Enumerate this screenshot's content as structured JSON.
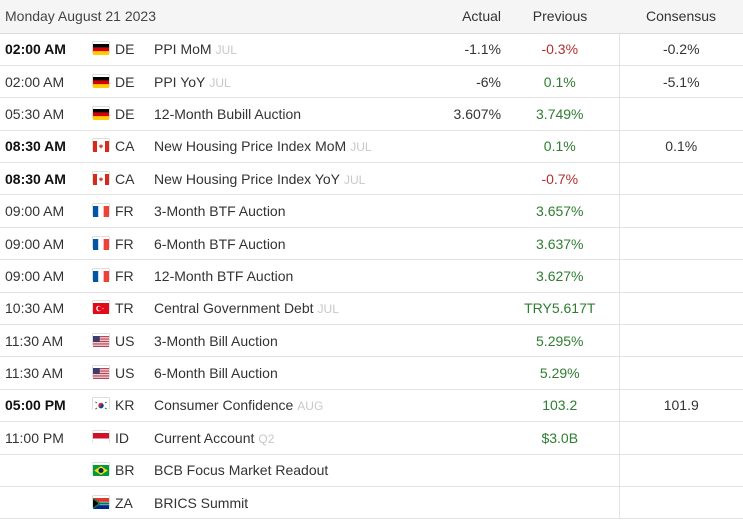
{
  "header": {
    "date": "Monday August 21 2023",
    "actual": "Actual",
    "previous": "Previous",
    "consensus": "Consensus"
  },
  "rows": [
    {
      "time": "02:00 AM",
      "bold": true,
      "flag": "de",
      "country": "DE",
      "event": "PPI MoM",
      "period": "JUL",
      "actual": "-1.1%",
      "previous": "-0.3%",
      "previous_color": "neg",
      "consensus": "-0.2%"
    },
    {
      "time": "02:00 AM",
      "bold": false,
      "flag": "de",
      "country": "DE",
      "event": "PPI YoY",
      "period": "JUL",
      "actual": "-6%",
      "previous": "0.1%",
      "previous_color": "pos",
      "consensus": "-5.1%"
    },
    {
      "time": "05:30 AM",
      "bold": false,
      "flag": "de",
      "country": "DE",
      "event": "12-Month Bubill Auction",
      "period": "",
      "actual": "3.607%",
      "previous": "3.749%",
      "previous_color": "pos",
      "consensus": ""
    },
    {
      "time": "08:30 AM",
      "bold": true,
      "flag": "ca",
      "country": "CA",
      "event": "New Housing Price Index MoM",
      "period": "JUL",
      "actual": "",
      "previous": "0.1%",
      "previous_color": "pos",
      "consensus": "0.1%"
    },
    {
      "time": "08:30 AM",
      "bold": true,
      "flag": "ca",
      "country": "CA",
      "event": "New Housing Price Index YoY",
      "period": "JUL",
      "actual": "",
      "previous": "-0.7%",
      "previous_color": "neg",
      "consensus": ""
    },
    {
      "time": "09:00 AM",
      "bold": false,
      "flag": "fr",
      "country": "FR",
      "event": "3-Month BTF Auction",
      "period": "",
      "actual": "",
      "previous": "3.657%",
      "previous_color": "pos",
      "consensus": ""
    },
    {
      "time": "09:00 AM",
      "bold": false,
      "flag": "fr",
      "country": "FR",
      "event": "6-Month BTF Auction",
      "period": "",
      "actual": "",
      "previous": "3.637%",
      "previous_color": "pos",
      "consensus": ""
    },
    {
      "time": "09:00 AM",
      "bold": false,
      "flag": "fr",
      "country": "FR",
      "event": "12-Month BTF Auction",
      "period": "",
      "actual": "",
      "previous": "3.627%",
      "previous_color": "pos",
      "consensus": ""
    },
    {
      "time": "10:30 AM",
      "bold": false,
      "flag": "tr",
      "country": "TR",
      "event": "Central Government Debt",
      "period": "JUL",
      "actual": "",
      "previous": "TRY5.617T",
      "previous_color": "pos",
      "consensus": ""
    },
    {
      "time": "11:30 AM",
      "bold": false,
      "flag": "us",
      "country": "US",
      "event": "3-Month Bill Auction",
      "period": "",
      "actual": "",
      "previous": "5.295%",
      "previous_color": "pos",
      "consensus": ""
    },
    {
      "time": "11:30 AM",
      "bold": false,
      "flag": "us",
      "country": "US",
      "event": "6-Month Bill Auction",
      "period": "",
      "actual": "",
      "previous": "5.29%",
      "previous_color": "pos",
      "consensus": ""
    },
    {
      "time": "05:00 PM",
      "bold": true,
      "flag": "kr",
      "country": "KR",
      "event": "Consumer Confidence",
      "period": "AUG",
      "actual": "",
      "previous": "103.2",
      "previous_color": "pos",
      "consensus": "101.9"
    },
    {
      "time": "11:00 PM",
      "bold": false,
      "flag": "id",
      "country": "ID",
      "event": "Current Account",
      "period": "Q2",
      "actual": "",
      "previous": "$3.0B",
      "previous_color": "pos",
      "consensus": ""
    },
    {
      "time": "",
      "bold": false,
      "flag": "br",
      "country": "BR",
      "event": "BCB Focus Market Readout",
      "period": "",
      "actual": "",
      "previous": "",
      "previous_color": "pos",
      "consensus": ""
    },
    {
      "time": "",
      "bold": false,
      "flag": "za",
      "country": "ZA",
      "event": "BRICS Summit",
      "period": "",
      "actual": "",
      "previous": "",
      "previous_color": "pos",
      "consensus": ""
    }
  ]
}
